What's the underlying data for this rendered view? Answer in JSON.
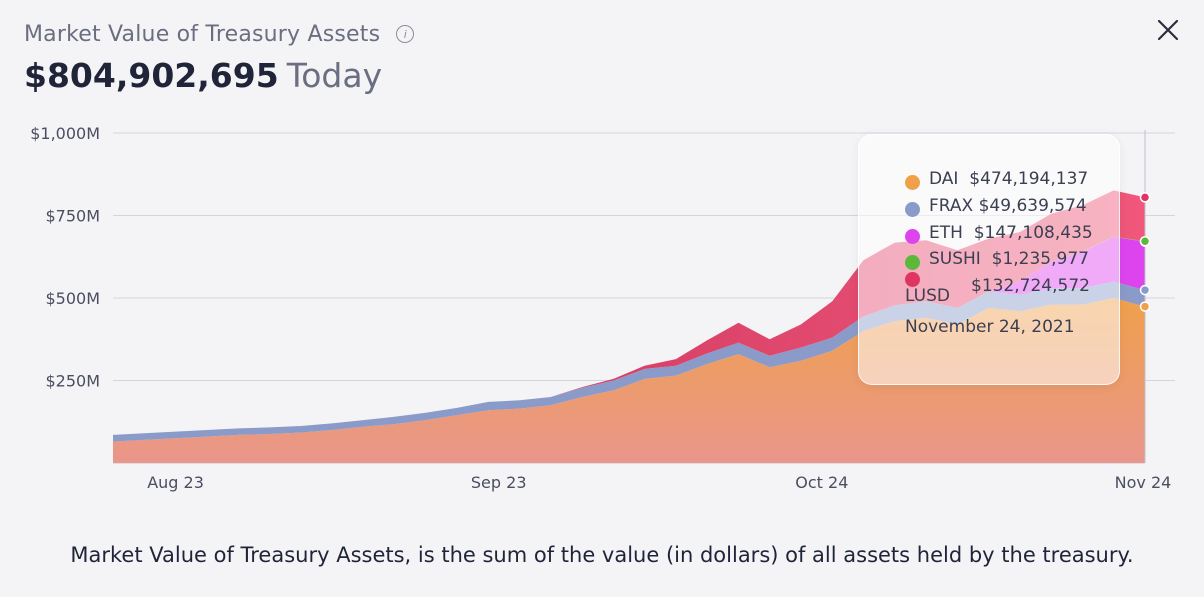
{
  "header": {
    "title": "Market Value of Treasury Assets",
    "info_icon": "info-icon",
    "close_icon": "close-icon",
    "value": "$804,902,695",
    "value_suffix": "Today"
  },
  "tooltip": {
    "rows": [
      {
        "name": "DAI",
        "value": "$474,194,137",
        "color": "#f0a04b"
      },
      {
        "name": "FRAX",
        "value": "$49,639,574",
        "color": "#8b9bc9"
      },
      {
        "name": "ETH",
        "value": "$147,108,435",
        "color": "#dd44ee"
      },
      {
        "name": "SUSHI",
        "value": "$1,235,977",
        "color": "#5cb83a"
      },
      {
        "name": "LUSD",
        "value": "$132,724,572",
        "color": "#e03562"
      }
    ],
    "date": "November 24, 2021"
  },
  "footer": {
    "text": "Market Value of Treasury Assets, is the sum of the value (in dollars) of all assets held by the treasury."
  },
  "chart_data": {
    "type": "area",
    "stacked": true,
    "x_ticks": [
      "Aug 23",
      "Sep 23",
      "Oct 24",
      "Nov 24"
    ],
    "y_ticks": [
      "$250M",
      "$500M",
      "$750M",
      "$1,000M"
    ],
    "ylim": [
      0,
      1000
    ],
    "grid": true,
    "x": [
      "2021-08-17",
      "2021-08-20",
      "2021-08-23",
      "2021-08-26",
      "2021-08-29",
      "2021-09-01",
      "2021-09-04",
      "2021-09-07",
      "2021-09-10",
      "2021-09-13",
      "2021-09-16",
      "2021-09-19",
      "2021-09-22",
      "2021-09-25",
      "2021-09-28",
      "2021-10-01",
      "2021-10-04",
      "2021-10-07",
      "2021-10-10",
      "2021-10-13",
      "2021-10-16",
      "2021-10-19",
      "2021-10-22",
      "2021-10-25",
      "2021-10-28",
      "2021-10-31",
      "2021-11-03",
      "2021-11-06",
      "2021-11-09",
      "2021-11-12",
      "2021-11-15",
      "2021-11-18",
      "2021-11-21",
      "2021-11-24"
    ],
    "series": [
      {
        "name": "DAI",
        "color": "#f0a04b",
        "values": [
          65,
          70,
          75,
          80,
          85,
          88,
          92,
          100,
          110,
          118,
          130,
          145,
          160,
          165,
          175,
          200,
          220,
          255,
          265,
          300,
          330,
          290,
          310,
          340,
          400,
          430,
          440,
          420,
          470,
          460,
          480,
          480,
          500,
          474
        ]
      },
      {
        "name": "FRAX",
        "color": "#8b9bc9",
        "values": [
          20,
          20,
          20,
          20,
          20,
          20,
          20,
          20,
          20,
          22,
          22,
          22,
          25,
          25,
          25,
          28,
          30,
          30,
          30,
          32,
          35,
          35,
          40,
          40,
          45,
          48,
          50,
          50,
          50,
          50,
          50,
          50,
          50,
          50
        ]
      },
      {
        "name": "ETH",
        "color": "#dd44ee",
        "values": [
          0,
          0,
          0,
          0,
          0,
          0,
          0,
          0,
          0,
          0,
          0,
          0,
          0,
          0,
          0,
          0,
          0,
          0,
          0,
          0,
          0,
          0,
          0,
          0,
          0,
          0,
          0,
          0,
          0,
          40,
          80,
          110,
          135,
          147
        ]
      },
      {
        "name": "SUSHI",
        "color": "#5cb83a",
        "values": [
          0,
          0,
          0,
          0,
          0,
          0,
          0,
          0,
          0,
          0,
          0,
          0,
          0,
          0,
          0,
          0,
          0,
          0,
          0,
          0,
          0,
          0,
          0,
          0,
          0,
          0,
          0,
          0,
          0,
          0,
          0,
          1,
          1,
          1
        ]
      },
      {
        "name": "LUSD",
        "color": "#e03562",
        "values": [
          0,
          0,
          0,
          0,
          0,
          0,
          0,
          0,
          0,
          0,
          0,
          0,
          0,
          0,
          0,
          2,
          5,
          10,
          20,
          40,
          60,
          50,
          70,
          110,
          170,
          190,
          185,
          175,
          160,
          150,
          145,
          140,
          140,
          133
        ]
      }
    ]
  }
}
